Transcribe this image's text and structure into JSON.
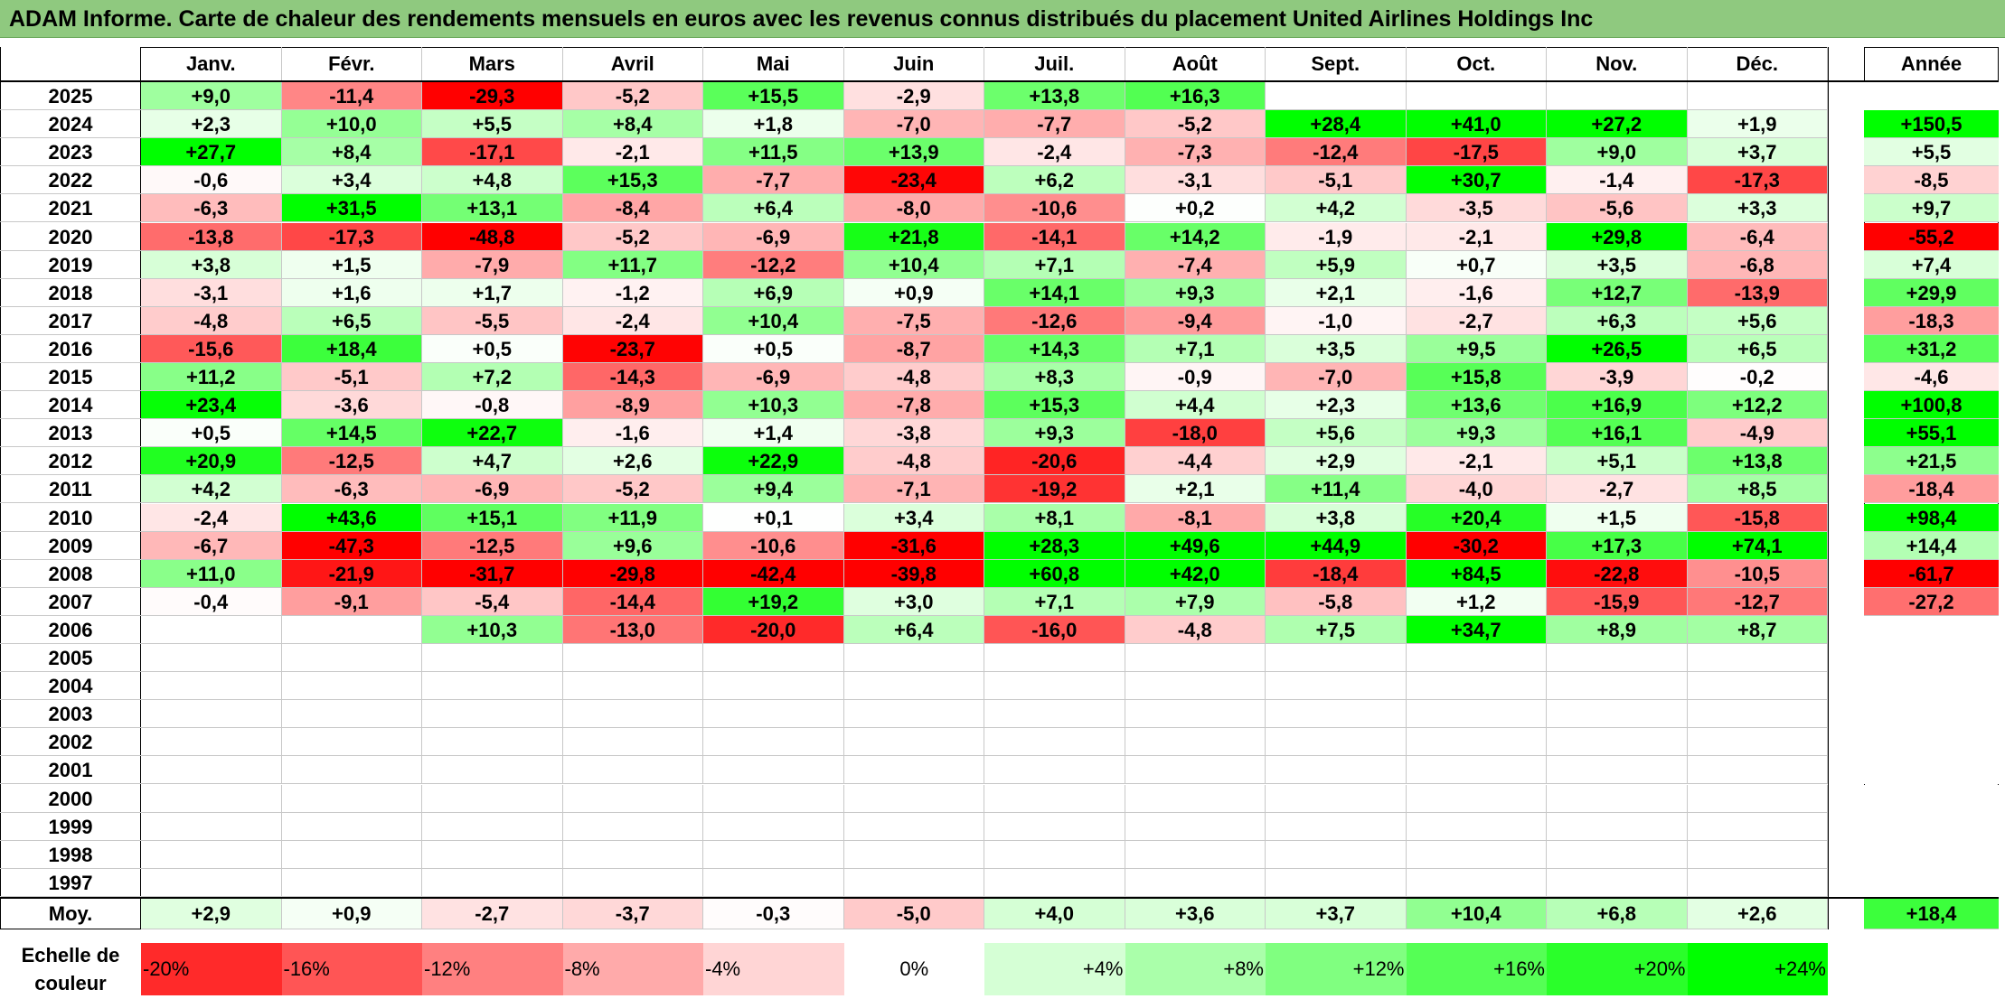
{
  "title": "ADAM Informe. Carte de chaleur des rendements mensuels en euros avec les revenus connus distribués du placement United Airlines Holdings Inc",
  "colors": {
    "title_bg": "#8fc97f",
    "neg_max": "#ff0000",
    "pos_max": "#00ff00",
    "zero": "#ffffff"
  },
  "chart_data": {
    "type": "heatmap",
    "months": [
      "Janv.",
      "Févr.",
      "Mars",
      "Avril",
      "Mai",
      "Juin",
      "Juil.",
      "Août",
      "Sept.",
      "Oct.",
      "Nov.",
      "Déc."
    ],
    "year_header": "Année",
    "avg_label": "Moy.",
    "rows": [
      {
        "year": "2025",
        "months": [
          "+9,0",
          "-11,4",
          "-29,3",
          "-5,2",
          "+15,5",
          "-2,9",
          "+13,8",
          "+16,3",
          "",
          "",
          "",
          ""
        ],
        "annual": ""
      },
      {
        "year": "2024",
        "months": [
          "+2,3",
          "+10,0",
          "+5,5",
          "+8,4",
          "+1,8",
          "-7,0",
          "-7,7",
          "-5,2",
          "+28,4",
          "+41,0",
          "+27,2",
          "+1,9"
        ],
        "annual": "+150,5"
      },
      {
        "year": "2023",
        "months": [
          "+27,7",
          "+8,4",
          "-17,1",
          "-2,1",
          "+11,5",
          "+13,9",
          "-2,4",
          "-7,3",
          "-12,4",
          "-17,5",
          "+9,0",
          "+3,7"
        ],
        "annual": "+5,5"
      },
      {
        "year": "2022",
        "months": [
          "-0,6",
          "+3,4",
          "+4,8",
          "+15,3",
          "-7,7",
          "-23,4",
          "+6,2",
          "-3,1",
          "-5,1",
          "+30,7",
          "-1,4",
          "-17,3"
        ],
        "annual": "-8,5"
      },
      {
        "year": "2021",
        "months": [
          "-6,3",
          "+31,5",
          "+13,1",
          "-8,4",
          "+6,4",
          "-8,0",
          "-10,6",
          "+0,2",
          "+4,2",
          "-3,5",
          "-5,6",
          "+3,3"
        ],
        "annual": "+9,7"
      },
      {
        "year": "2020",
        "months": [
          "-13,8",
          "-17,3",
          "-48,8",
          "-5,2",
          "-6,9",
          "+21,8",
          "-14,1",
          "+14,2",
          "-1,9",
          "-2,1",
          "+29,8",
          "-6,4"
        ],
        "annual": "-55,2"
      },
      {
        "year": "2019",
        "months": [
          "+3,8",
          "+1,5",
          "-7,9",
          "+11,7",
          "-12,2",
          "+10,4",
          "+7,1",
          "-7,4",
          "+5,9",
          "+0,7",
          "+3,5",
          "-6,8"
        ],
        "annual": "+7,4"
      },
      {
        "year": "2018",
        "months": [
          "-3,1",
          "+1,6",
          "+1,7",
          "-1,2",
          "+6,9",
          "+0,9",
          "+14,1",
          "+9,3",
          "+2,1",
          "-1,6",
          "+12,7",
          "-13,9"
        ],
        "annual": "+29,9"
      },
      {
        "year": "2017",
        "months": [
          "-4,8",
          "+6,5",
          "-5,5",
          "-2,4",
          "+10,4",
          "-7,5",
          "-12,6",
          "-9,4",
          "-1,0",
          "-2,7",
          "+6,3",
          "+5,6"
        ],
        "annual": "-18,3"
      },
      {
        "year": "2016",
        "months": [
          "-15,6",
          "+18,4",
          "+0,5",
          "-23,7",
          "+0,5",
          "-8,7",
          "+14,3",
          "+7,1",
          "+3,5",
          "+9,5",
          "+26,5",
          "+6,5"
        ],
        "annual": "+31,2"
      },
      {
        "year": "2015",
        "months": [
          "+11,2",
          "-5,1",
          "+7,2",
          "-14,3",
          "-6,9",
          "-4,8",
          "+8,3",
          "-0,9",
          "-7,0",
          "+15,8",
          "-3,9",
          "-0,2"
        ],
        "annual": "-4,6"
      },
      {
        "year": "2014",
        "months": [
          "+23,4",
          "-3,6",
          "-0,8",
          "-8,9",
          "+10,3",
          "-7,8",
          "+15,3",
          "+4,4",
          "+2,3",
          "+13,6",
          "+16,9",
          "+12,2"
        ],
        "annual": "+100,8"
      },
      {
        "year": "2013",
        "months": [
          "+0,5",
          "+14,5",
          "+22,7",
          "-1,6",
          "+1,4",
          "-3,8",
          "+9,3",
          "-18,0",
          "+5,6",
          "+9,3",
          "+16,1",
          "-4,9"
        ],
        "annual": "+55,1"
      },
      {
        "year": "2012",
        "months": [
          "+20,9",
          "-12,5",
          "+4,7",
          "+2,6",
          "+22,9",
          "-4,8",
          "-20,6",
          "-4,4",
          "+2,9",
          "-2,1",
          "+5,1",
          "+13,8"
        ],
        "annual": "+21,5"
      },
      {
        "year": "2011",
        "months": [
          "+4,2",
          "-6,3",
          "-6,9",
          "-5,2",
          "+9,4",
          "-7,1",
          "-19,2",
          "+2,1",
          "+11,4",
          "-4,0",
          "-2,7",
          "+8,5"
        ],
        "annual": "-18,4"
      },
      {
        "year": "2010",
        "months": [
          "-2,4",
          "+43,6",
          "+15,1",
          "+11,9",
          "+0,1",
          "+3,4",
          "+8,1",
          "-8,1",
          "+3,8",
          "+20,4",
          "+1,5",
          "-15,8"
        ],
        "annual": "+98,4"
      },
      {
        "year": "2009",
        "months": [
          "-6,7",
          "-47,3",
          "-12,5",
          "+9,6",
          "-10,6",
          "-31,6",
          "+28,3",
          "+49,6",
          "+44,9",
          "-30,2",
          "+17,3",
          "+74,1"
        ],
        "annual": "+14,4"
      },
      {
        "year": "2008",
        "months": [
          "+11,0",
          "-21,9",
          "-31,7",
          "-29,8",
          "-42,4",
          "-39,8",
          "+60,8",
          "+42,0",
          "-18,4",
          "+84,5",
          "-22,8",
          "-10,5"
        ],
        "annual": "-61,7"
      },
      {
        "year": "2007",
        "months": [
          "-0,4",
          "-9,1",
          "-5,4",
          "-14,4",
          "+19,2",
          "+3,0",
          "+7,1",
          "+7,9",
          "-5,8",
          "+1,2",
          "-15,9",
          "-12,7"
        ],
        "annual": "-27,2"
      },
      {
        "year": "2006",
        "months": [
          "",
          "",
          "+10,3",
          "-13,0",
          "-20,0",
          "+6,4",
          "-16,0",
          "-4,8",
          "+7,5",
          "+34,7",
          "+8,9",
          "+8,7"
        ],
        "annual": ""
      },
      {
        "year": "2005",
        "months": [
          "",
          "",
          "",
          "",
          "",
          "",
          "",
          "",
          "",
          "",
          "",
          ""
        ],
        "annual": ""
      },
      {
        "year": "2004",
        "months": [
          "",
          "",
          "",
          "",
          "",
          "",
          "",
          "",
          "",
          "",
          "",
          ""
        ],
        "annual": ""
      },
      {
        "year": "2003",
        "months": [
          "",
          "",
          "",
          "",
          "",
          "",
          "",
          "",
          "",
          "",
          "",
          ""
        ],
        "annual": ""
      },
      {
        "year": "2002",
        "months": [
          "",
          "",
          "",
          "",
          "",
          "",
          "",
          "",
          "",
          "",
          "",
          ""
        ],
        "annual": ""
      },
      {
        "year": "2001",
        "months": [
          "",
          "",
          "",
          "",
          "",
          "",
          "",
          "",
          "",
          "",
          "",
          ""
        ],
        "annual": ""
      },
      {
        "year": "2000",
        "months": [
          "",
          "",
          "",
          "",
          "",
          "",
          "",
          "",
          "",
          "",
          "",
          ""
        ],
        "annual": ""
      },
      {
        "year": "1999",
        "months": [
          "",
          "",
          "",
          "",
          "",
          "",
          "",
          "",
          "",
          "",
          "",
          ""
        ],
        "annual": ""
      },
      {
        "year": "1998",
        "months": [
          "",
          "",
          "",
          "",
          "",
          "",
          "",
          "",
          "",
          "",
          "",
          ""
        ],
        "annual": ""
      },
      {
        "year": "1997",
        "months": [
          "",
          "",
          "",
          "",
          "",
          "",
          "",
          "",
          "",
          "",
          "",
          ""
        ],
        "annual": ""
      }
    ],
    "averages": {
      "months": [
        "+2,9",
        "+0,9",
        "-2,7",
        "-3,7",
        "-0,3",
        "-5,0",
        "+4,0",
        "+3,6",
        "+3,7",
        "+10,4",
        "+6,8",
        "+2,6"
      ],
      "annual": "+18,4"
    },
    "scale": {
      "label_line1": "Echelle de",
      "label_line2": "couleur",
      "steps": [
        "-20%",
        "-16%",
        "-12%",
        "-8%",
        "-4%",
        "0%",
        "+4%",
        "+8%",
        "+12%",
        "+16%",
        "+20%",
        "+24%"
      ]
    }
  }
}
